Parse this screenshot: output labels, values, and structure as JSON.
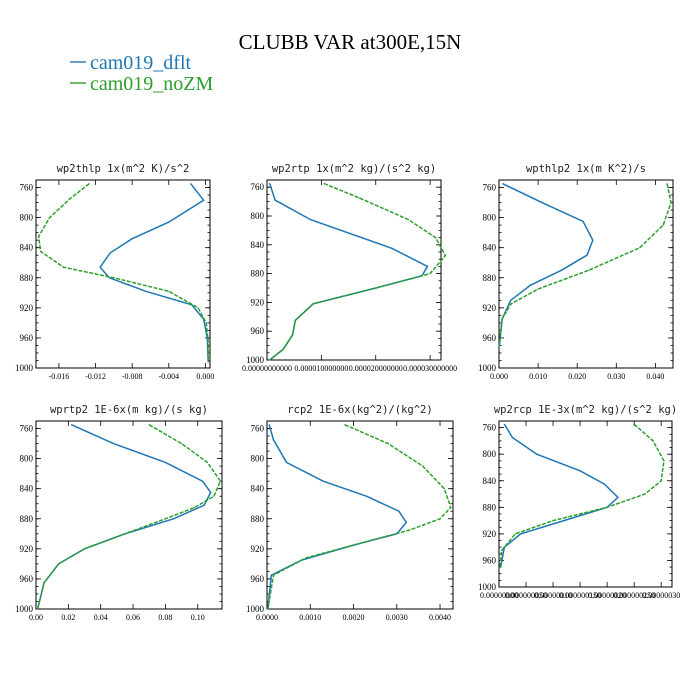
{
  "figure": {
    "title": "CLUBB VAR at300E,15N",
    "legend": [
      {
        "label": "cam019_dflt",
        "color": "#1f77b4"
      },
      {
        "label": "cam019_noZM",
        "color": "#2ca02c"
      }
    ]
  },
  "chart_data": [
    {
      "type": "line",
      "title": "wp2thlp  1x(m^2 K)/s^2",
      "xlim": [
        -0.0185,
        0.0005
      ],
      "ylim": [
        1000,
        750
      ],
      "yticks": [
        {
          "v": 760,
          "label": "760"
        },
        {
          "v": 800,
          "label": "800"
        },
        {
          "v": 840,
          "label": "840"
        },
        {
          "v": 880,
          "label": "880"
        },
        {
          "v": 920,
          "label": "920"
        },
        {
          "v": 960,
          "label": "960"
        },
        {
          "v": 1000,
          "label": "1000"
        }
      ],
      "xticks": [
        {
          "v": -0.016,
          "label": "-0.016"
        },
        {
          "v": -0.012,
          "label": "-0.012"
        },
        {
          "v": -0.008,
          "label": "-0.008"
        },
        {
          "v": -0.004,
          "label": "-0.004"
        },
        {
          "v": 0.0,
          "label": "0.000"
        }
      ],
      "series": [
        {
          "name": "cam019_dflt",
          "color": "#1f77b4",
          "dashed": false,
          "x": [
            -0.0016,
            -0.0002,
            -0.004,
            -0.008,
            -0.0104,
            -0.0115,
            -0.0105,
            -0.0065,
            -0.0015,
            -0.0002,
            0.0002,
            0.0003
          ],
          "y": [
            755,
            777,
            806,
            828,
            847,
            866,
            880,
            898,
            916,
            935,
            960,
            992
          ]
        },
        {
          "name": "cam019_noZM",
          "color": "#2ca02c",
          "dashed": true,
          "x": [
            -0.0127,
            -0.0148,
            -0.017,
            -0.0182,
            -0.018,
            -0.0155,
            -0.01,
            -0.004,
            -0.0008,
            0.0001,
            0.0003,
            0.0003
          ],
          "y": [
            755,
            775,
            800,
            825,
            845,
            866,
            880,
            898,
            920,
            940,
            965,
            992
          ]
        }
      ]
    },
    {
      "type": "line",
      "title": "wp2rtp  1x(m^2 kg)/(s^2 kg)",
      "xlim": [
        0.0,
        3.2e-05
      ],
      "ylim": [
        1000,
        750
      ],
      "yticks": [
        {
          "v": 760,
          "label": "760"
        },
        {
          "v": 800,
          "label": "800"
        },
        {
          "v": 840,
          "label": "840"
        },
        {
          "v": 880,
          "label": "880"
        },
        {
          "v": 920,
          "label": "920"
        },
        {
          "v": 960,
          "label": "960"
        },
        {
          "v": 1000,
          "label": "1000"
        }
      ],
      "xticks": [
        {
          "v": 0.0,
          "label": "0.00000000000"
        },
        {
          "v": 1e-05,
          "label": "0.000010000000"
        },
        {
          "v": 2e-05,
          "label": "0.000020000000"
        },
        {
          "v": 3e-05,
          "label": "0.000030000000"
        }
      ],
      "series": [
        {
          "name": "cam019_dflt",
          "color": "#1f77b4",
          "dashed": false,
          "x": [
            5e-07,
            1.5e-06,
            8e-06,
            2.3e-05,
            2.95e-05,
            2.85e-05,
            2e-05,
            8.5e-06,
            5.2e-06,
            4.7e-06,
            3e-06,
            5e-07
          ],
          "y": [
            755,
            778,
            805,
            845,
            870,
            883,
            900,
            922,
            945,
            965,
            985,
            1000
          ]
        },
        {
          "name": "cam019_noZM",
          "color": "#2ca02c",
          "dashed": true,
          "x": [
            1.05e-05,
            1.7e-05,
            2.6e-05,
            3.1e-05,
            3.28e-05,
            3e-05,
            2e-05,
            8.5e-06,
            5.2e-06,
            4.7e-06,
            3e-06,
            5e-07
          ],
          "y": [
            755,
            775,
            805,
            830,
            855,
            880,
            900,
            922,
            945,
            965,
            985,
            1000
          ]
        }
      ]
    },
    {
      "type": "line",
      "title": "wpthlp2  1x(m K^2)/s",
      "xlim": [
        0.0,
        0.0445
      ],
      "ylim": [
        1000,
        750
      ],
      "yticks": [
        {
          "v": 760,
          "label": "760"
        },
        {
          "v": 800,
          "label": "800"
        },
        {
          "v": 840,
          "label": "840"
        },
        {
          "v": 880,
          "label": "880"
        },
        {
          "v": 920,
          "label": "920"
        },
        {
          "v": 960,
          "label": "960"
        },
        {
          "v": 1000,
          "label": "1000"
        }
      ],
      "xticks": [
        {
          "v": 0.0,
          "label": "0.000"
        },
        {
          "v": 0.01,
          "label": "0.010"
        },
        {
          "v": 0.02,
          "label": "0.020"
        },
        {
          "v": 0.03,
          "label": "0.030"
        },
        {
          "v": 0.04,
          "label": "0.040"
        }
      ],
      "series": [
        {
          "name": "cam019_dflt",
          "color": "#1f77b4",
          "dashed": false,
          "x": [
            0.001,
            0.011,
            0.0215,
            0.024,
            0.0225,
            0.016,
            0.008,
            0.003,
            0.0008,
            0.0001
          ],
          "y": [
            755,
            780,
            805,
            830,
            850,
            870,
            890,
            910,
            935,
            970
          ]
        },
        {
          "name": "cam019_noZM",
          "color": "#2ca02c",
          "dashed": true,
          "x": [
            0.043,
            0.044,
            0.042,
            0.036,
            0.023,
            0.01,
            0.003,
            0.0008,
            0.0001
          ],
          "y": [
            755,
            780,
            810,
            840,
            870,
            895,
            915,
            935,
            970
          ]
        }
      ]
    },
    {
      "type": "line",
      "title": "wprtp2  1E-6x(m kg)/(s kg)",
      "xlim": [
        0.0,
        0.115
      ],
      "ylim": [
        1000,
        750
      ],
      "yticks": [
        {
          "v": 760,
          "label": "760"
        },
        {
          "v": 800,
          "label": "800"
        },
        {
          "v": 840,
          "label": "840"
        },
        {
          "v": 880,
          "label": "880"
        },
        {
          "v": 920,
          "label": "920"
        },
        {
          "v": 960,
          "label": "960"
        },
        {
          "v": 1000,
          "label": "1000"
        }
      ],
      "xticks": [
        {
          "v": 0.0,
          "label": "0.00"
        },
        {
          "v": 0.02,
          "label": "0.02"
        },
        {
          "v": 0.04,
          "label": "0.04"
        },
        {
          "v": 0.06,
          "label": "0.06"
        },
        {
          "v": 0.08,
          "label": "0.08"
        },
        {
          "v": 0.1,
          "label": "0.10"
        }
      ],
      "series": [
        {
          "name": "cam019_dflt",
          "color": "#1f77b4",
          "dashed": false,
          "x": [
            0.022,
            0.048,
            0.08,
            0.103,
            0.108,
            0.104,
            0.085,
            0.055,
            0.03,
            0.014,
            0.005,
            0.001
          ],
          "y": [
            755,
            780,
            805,
            830,
            845,
            862,
            880,
            900,
            920,
            940,
            965,
            1000
          ]
        },
        {
          "name": "cam019_noZM",
          "color": "#2ca02c",
          "dashed": true,
          "x": [
            0.07,
            0.09,
            0.106,
            0.114,
            0.11,
            0.098,
            0.08,
            0.055,
            0.03,
            0.014,
            0.005,
            0.001
          ],
          "y": [
            755,
            780,
            805,
            830,
            850,
            865,
            880,
            900,
            920,
            940,
            965,
            1000
          ]
        }
      ]
    },
    {
      "type": "line",
      "title": "rcp2  1E-6x(kg^2)/(kg^2)",
      "xlim": [
        0.0,
        0.0043
      ],
      "ylim": [
        1000,
        750
      ],
      "yticks": [
        {
          "v": 760,
          "label": "760"
        },
        {
          "v": 800,
          "label": "800"
        },
        {
          "v": 840,
          "label": "840"
        },
        {
          "v": 880,
          "label": "880"
        },
        {
          "v": 920,
          "label": "920"
        },
        {
          "v": 960,
          "label": "960"
        },
        {
          "v": 1000,
          "label": "1000"
        }
      ],
      "xticks": [
        {
          "v": 0.0,
          "label": "0.0000"
        },
        {
          "v": 0.001,
          "label": "0.0010"
        },
        {
          "v": 0.002,
          "label": "0.0020"
        },
        {
          "v": 0.003,
          "label": "0.0030"
        },
        {
          "v": 0.004,
          "label": "0.0040"
        }
      ],
      "series": [
        {
          "name": "cam019_dflt",
          "color": "#1f77b4",
          "dashed": false,
          "x": [
            5e-05,
            0.00015,
            0.00045,
            0.0013,
            0.0023,
            0.00305,
            0.00322,
            0.003,
            0.002,
            0.0008,
            0.0001,
            2e-05
          ],
          "y": [
            755,
            775,
            805,
            830,
            850,
            870,
            885,
            900,
            915,
            935,
            955,
            1000
          ]
        },
        {
          "name": "cam019_noZM",
          "color": "#2ca02c",
          "dashed": true,
          "x": [
            0.0018,
            0.0028,
            0.0036,
            0.0041,
            0.00425,
            0.004,
            0.0033,
            0.0022,
            0.0009,
            0.00015,
            2e-05
          ],
          "y": [
            755,
            780,
            810,
            840,
            865,
            880,
            895,
            912,
            932,
            955,
            1000
          ]
        }
      ]
    },
    {
      "type": "line",
      "title": "wp2rcp  1E-3x(m^2 kg)/(s^2 kg)",
      "xlim": [
        0.0,
        3.2e-07
      ],
      "ylim": [
        1000,
        750
      ],
      "yticks": [
        {
          "v": 760,
          "label": "760"
        },
        {
          "v": 800,
          "label": "800"
        },
        {
          "v": 840,
          "label": "840"
        },
        {
          "v": 880,
          "label": "880"
        },
        {
          "v": 920,
          "label": "920"
        },
        {
          "v": 960,
          "label": "960"
        },
        {
          "v": 1000,
          "label": "1000"
        }
      ],
      "xticks": [
        {
          "v": 0.0,
          "label": "0.00000000"
        },
        {
          "v": 5e-08,
          "label": "0.000000050"
        },
        {
          "v": 1e-07,
          "label": "0.00000010"
        },
        {
          "v": 1.5e-07,
          "label": "0.000000150"
        },
        {
          "v": 2e-07,
          "label": "0.00000020"
        },
        {
          "v": 2.5e-07,
          "label": "0.000000250"
        },
        {
          "v": 3e-07,
          "label": "0.00000030"
        }
      ],
      "series": [
        {
          "name": "cam019_dflt",
          "color": "#1f77b4",
          "dashed": false,
          "x": [
            1e-08,
            2.5e-08,
            7e-08,
            1.5e-07,
            1.95e-07,
            2.2e-07,
            2e-07,
            1.2e-07,
            4e-08,
            1e-08,
            3e-09
          ],
          "y": [
            755,
            775,
            800,
            825,
            845,
            865,
            880,
            900,
            920,
            940,
            970
          ]
        },
        {
          "name": "cam019_noZM",
          "color": "#2ca02c",
          "dashed": true,
          "x": [
            2.5e-07,
            2.85e-07,
            3.05e-07,
            3e-07,
            2.7e-07,
            2e-07,
            1e-07,
            3e-08,
            5e-09,
            2e-09
          ],
          "y": [
            755,
            780,
            810,
            840,
            860,
            880,
            900,
            920,
            945,
            970
          ]
        }
      ]
    }
  ]
}
